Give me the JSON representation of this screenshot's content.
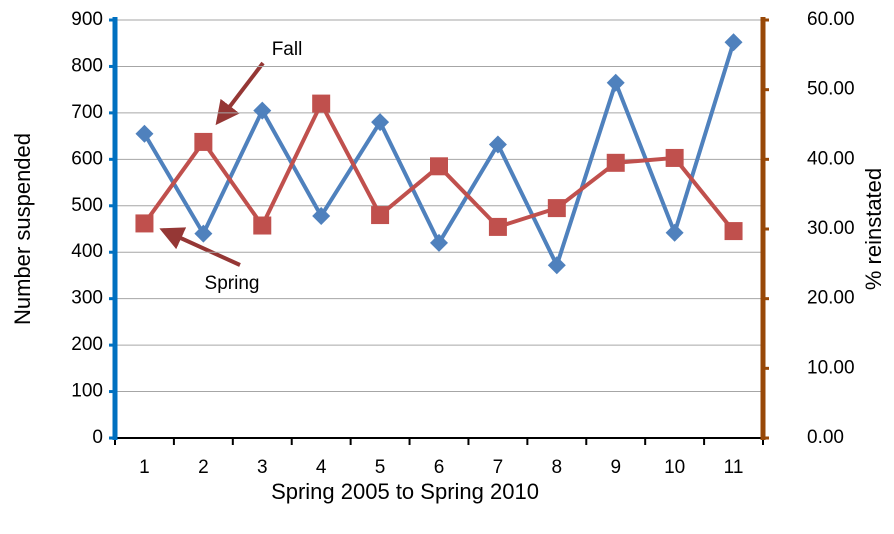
{
  "chart_data": {
    "type": "line",
    "x_label": "Spring 2005 to Spring 2010",
    "y_label": "Number suspended",
    "y2_label": "% reinstated",
    "categories": [
      "1",
      "2",
      "3",
      "4",
      "5",
      "6",
      "7",
      "8",
      "9",
      "10",
      "11"
    ],
    "series": [
      {
        "name": "Number suspended",
        "color": "#4f81bd",
        "marker": "diamond",
        "values": [
          655,
          440,
          705,
          478,
          680,
          420,
          632,
          372,
          765,
          442,
          852
        ]
      },
      {
        "name": "% reinstated",
        "color": "#c0504d",
        "marker": "square",
        "axis": "y2",
        "values": [
          30.8,
          42.5,
          30.5,
          48.0,
          32.0,
          39.0,
          30.3,
          33.0,
          39.5,
          40.2,
          29.7
        ]
      }
    ],
    "ylim": [
      0,
      900
    ],
    "yticks": [
      0,
      100,
      200,
      300,
      400,
      500,
      600,
      700,
      800,
      900
    ],
    "y2lim": [
      0,
      60
    ],
    "y2ticks": [
      {
        "value": 0,
        "label": "0.00"
      },
      {
        "value": 10,
        "label": "10.00"
      },
      {
        "value": 20,
        "label": "20.00"
      },
      {
        "value": 30,
        "label": "30.00"
      },
      {
        "value": 40,
        "label": "40.00"
      },
      {
        "value": 50,
        "label": "50.00"
      },
      {
        "value": 60,
        "label": "60.00"
      }
    ],
    "grid": true,
    "y_axis_color": "#0070c0",
    "y2_axis_color": "#984807",
    "annotations": [
      "Fall",
      "Spring"
    ]
  }
}
